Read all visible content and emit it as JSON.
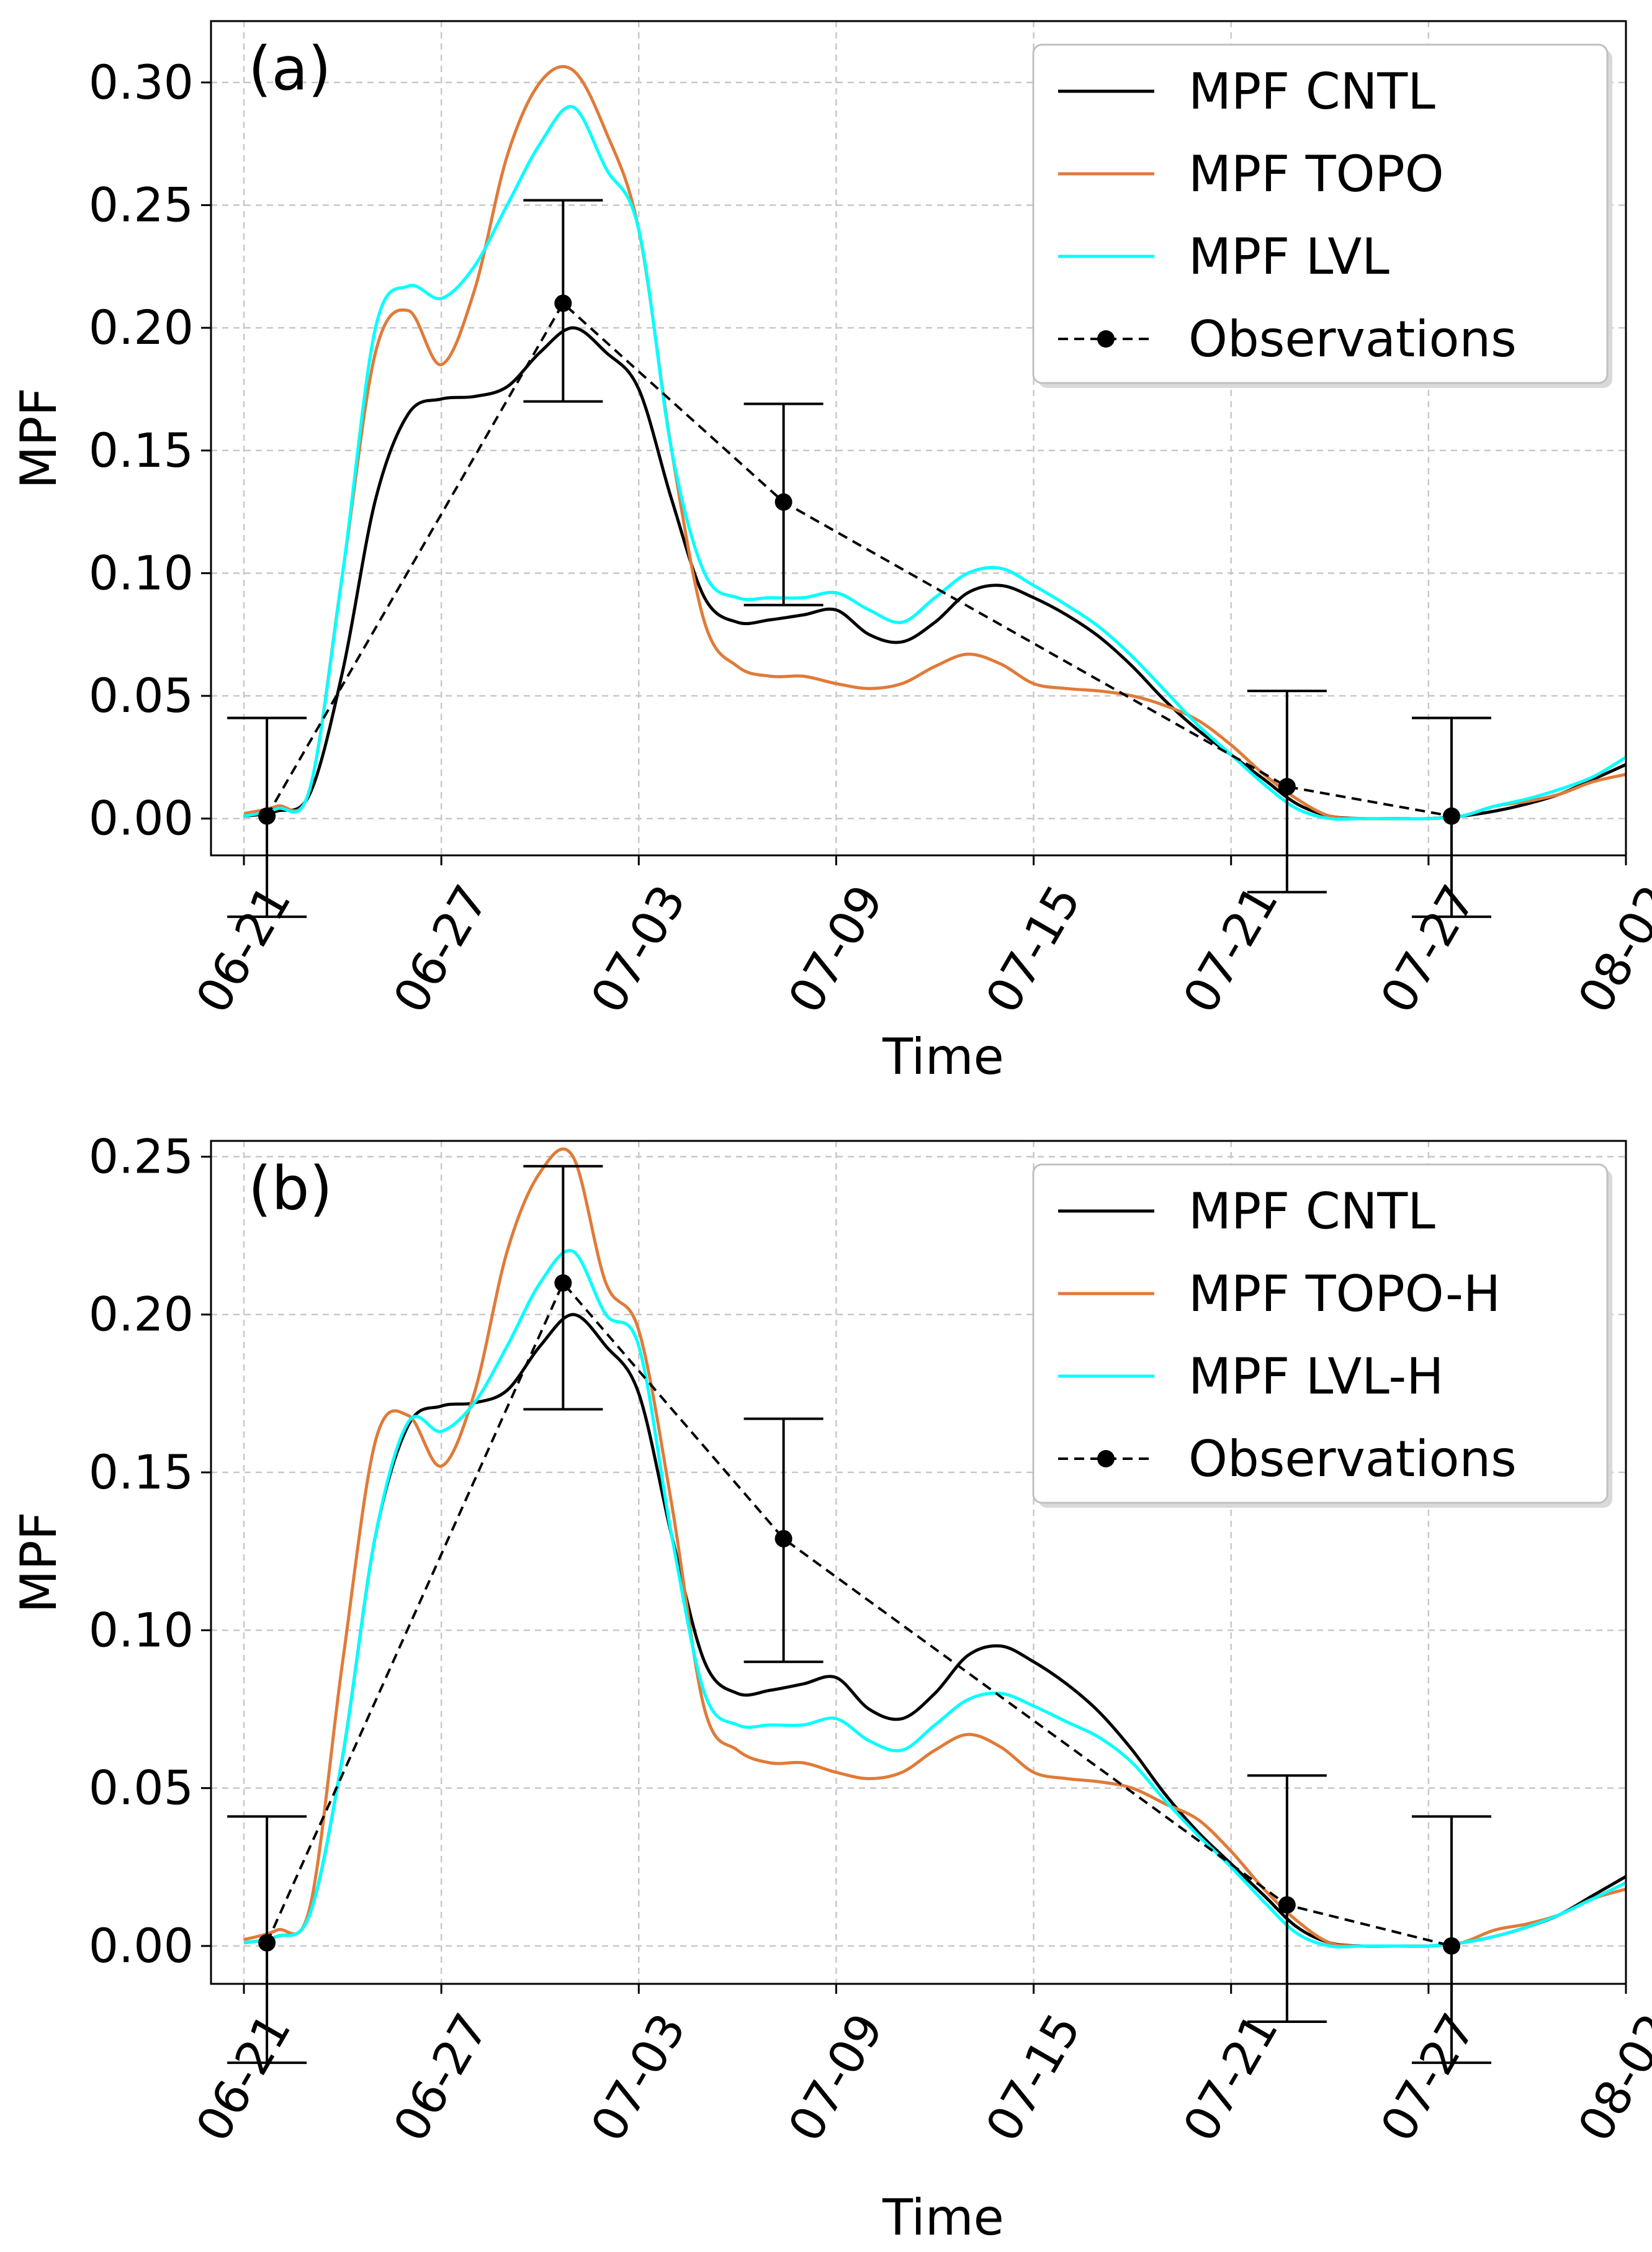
{
  "figure": {
    "background": "#ffffff"
  },
  "chart_data": [
    {
      "panel_label": "(a)",
      "type": "line",
      "xlabel": "Time",
      "ylabel": "MPF",
      "xlim": [
        -1,
        42
      ],
      "ylim": [
        -0.015,
        0.325
      ],
      "x_ticks": [
        0,
        6,
        12,
        18,
        24,
        30,
        36,
        42
      ],
      "x_tick_labels": [
        "06-21",
        "06-27",
        "07-03",
        "07-09",
        "07-15",
        "07-21",
        "07-27",
        "08-02"
      ],
      "y_ticks": [
        0.0,
        0.05,
        0.1,
        0.15,
        0.2,
        0.25,
        0.3
      ],
      "y_tick_labels": [
        "0.00",
        "0.05",
        "0.10",
        "0.15",
        "0.20",
        "0.25",
        "0.30"
      ],
      "grid": true,
      "legend_position": "top-right",
      "series": [
        {
          "name": "MPF CNTL",
          "color": "#000000",
          "style": "solid",
          "x": [
            0,
            1,
            2,
            3,
            4,
            5,
            6,
            7,
            8,
            9,
            10,
            11,
            12,
            13,
            14,
            15,
            16,
            17,
            18,
            19,
            20,
            21,
            22,
            23,
            24,
            25,
            26,
            27,
            28,
            29,
            30,
            31,
            32,
            33,
            34,
            35,
            36,
            37,
            38,
            39,
            40,
            41,
            42
          ],
          "y": [
            0.001,
            0.003,
            0.01,
            0.06,
            0.13,
            0.165,
            0.171,
            0.172,
            0.176,
            0.19,
            0.2,
            0.19,
            0.175,
            0.13,
            0.09,
            0.08,
            0.081,
            0.083,
            0.085,
            0.075,
            0.072,
            0.08,
            0.092,
            0.095,
            0.09,
            0.083,
            0.074,
            0.062,
            0.048,
            0.036,
            0.026,
            0.016,
            0.006,
            0.001,
            0.0,
            0.0,
            0.0,
            0.001,
            0.003,
            0.006,
            0.01,
            0.016,
            0.022
          ]
        },
        {
          "name": "MPF TOPO",
          "color": "#e07b39",
          "style": "solid",
          "x": [
            0,
            1,
            2,
            3,
            4,
            5,
            6,
            7,
            8,
            9,
            10,
            11,
            12,
            13,
            14,
            15,
            16,
            17,
            18,
            19,
            20,
            21,
            22,
            23,
            24,
            25,
            26,
            27,
            28,
            29,
            30,
            31,
            32,
            33,
            34,
            35,
            36,
            37,
            38,
            39,
            40,
            41,
            42
          ],
          "y": [
            0.002,
            0.005,
            0.012,
            0.1,
            0.19,
            0.207,
            0.185,
            0.215,
            0.27,
            0.3,
            0.305,
            0.28,
            0.24,
            0.15,
            0.08,
            0.062,
            0.058,
            0.058,
            0.055,
            0.053,
            0.055,
            0.062,
            0.067,
            0.063,
            0.055,
            0.053,
            0.052,
            0.05,
            0.046,
            0.04,
            0.03,
            0.018,
            0.008,
            0.001,
            0.0,
            0.0,
            0.0,
            0.001,
            0.005,
            0.007,
            0.01,
            0.015,
            0.018
          ]
        },
        {
          "name": "MPF LVL",
          "color": "#00ffff",
          "style": "solid",
          "x": [
            0,
            1,
            2,
            3,
            4,
            5,
            6,
            7,
            8,
            9,
            10,
            11,
            12,
            13,
            14,
            15,
            16,
            17,
            18,
            19,
            20,
            21,
            22,
            23,
            24,
            25,
            26,
            27,
            28,
            29,
            30,
            31,
            32,
            33,
            34,
            35,
            36,
            37,
            38,
            39,
            40,
            41,
            42
          ],
          "y": [
            0.001,
            0.004,
            0.012,
            0.1,
            0.2,
            0.217,
            0.212,
            0.225,
            0.25,
            0.275,
            0.29,
            0.265,
            0.24,
            0.15,
            0.1,
            0.09,
            0.09,
            0.09,
            0.092,
            0.085,
            0.08,
            0.09,
            0.1,
            0.102,
            0.095,
            0.087,
            0.078,
            0.066,
            0.052,
            0.038,
            0.026,
            0.014,
            0.004,
            0.0,
            0.0,
            0.0,
            0.0,
            0.001,
            0.005,
            0.008,
            0.012,
            0.017,
            0.025
          ]
        },
        {
          "name": "Observations",
          "color": "#000000",
          "style": "dashed-marker",
          "x": [
            0.7,
            9.7,
            16.4,
            31.7,
            36.7
          ],
          "y": [
            0.001,
            0.21,
            0.129,
            0.013,
            0.001
          ],
          "err_low": [
            -0.04,
            0.17,
            0.087,
            -0.03,
            -0.04
          ],
          "err_high": [
            0.041,
            0.252,
            0.169,
            0.052,
            0.041
          ]
        }
      ]
    },
    {
      "panel_label": "(b)",
      "type": "line",
      "xlabel": "Time",
      "ylabel": "MPF",
      "xlim": [
        -1,
        42
      ],
      "ylim": [
        -0.012,
        0.255
      ],
      "x_ticks": [
        0,
        6,
        12,
        18,
        24,
        30,
        36,
        42
      ],
      "x_tick_labels": [
        "06-21",
        "06-27",
        "07-03",
        "07-09",
        "07-15",
        "07-21",
        "07-27",
        "08-02"
      ],
      "y_ticks": [
        0.0,
        0.05,
        0.1,
        0.15,
        0.2,
        0.25
      ],
      "y_tick_labels": [
        "0.00",
        "0.05",
        "0.10",
        "0.15",
        "0.20",
        "0.25"
      ],
      "grid": true,
      "legend_position": "top-right",
      "series": [
        {
          "name": "MPF CNTL",
          "color": "#000000",
          "style": "solid",
          "x": [
            0,
            1,
            2,
            3,
            4,
            5,
            6,
            7,
            8,
            9,
            10,
            11,
            12,
            13,
            14,
            15,
            16,
            17,
            18,
            19,
            20,
            21,
            22,
            23,
            24,
            25,
            26,
            27,
            28,
            29,
            30,
            31,
            32,
            33,
            34,
            35,
            36,
            37,
            38,
            39,
            40,
            41,
            42
          ],
          "y": [
            0.001,
            0.003,
            0.01,
            0.06,
            0.13,
            0.165,
            0.171,
            0.172,
            0.176,
            0.19,
            0.2,
            0.19,
            0.175,
            0.13,
            0.09,
            0.08,
            0.081,
            0.083,
            0.085,
            0.075,
            0.072,
            0.08,
            0.092,
            0.095,
            0.09,
            0.083,
            0.074,
            0.062,
            0.048,
            0.036,
            0.026,
            0.016,
            0.006,
            0.001,
            0.0,
            0.0,
            0.0,
            0.001,
            0.003,
            0.006,
            0.01,
            0.016,
            0.022
          ]
        },
        {
          "name": "MPF TOPO-H",
          "color": "#e07b39",
          "style": "solid",
          "x": [
            0,
            1,
            2,
            3,
            4,
            5,
            6,
            7,
            8,
            9,
            10,
            11,
            12,
            13,
            14,
            15,
            16,
            17,
            18,
            19,
            20,
            21,
            22,
            23,
            24,
            25,
            26,
            27,
            28,
            29,
            30,
            31,
            32,
            33,
            34,
            35,
            36,
            37,
            38,
            39,
            40,
            41,
            42
          ],
          "y": [
            0.002,
            0.005,
            0.012,
            0.09,
            0.16,
            0.168,
            0.152,
            0.175,
            0.22,
            0.245,
            0.25,
            0.21,
            0.195,
            0.14,
            0.075,
            0.062,
            0.058,
            0.058,
            0.055,
            0.053,
            0.055,
            0.062,
            0.067,
            0.063,
            0.055,
            0.053,
            0.052,
            0.05,
            0.045,
            0.04,
            0.03,
            0.018,
            0.008,
            0.001,
            0.0,
            0.0,
            0.0,
            0.001,
            0.005,
            0.007,
            0.01,
            0.015,
            0.018
          ]
        },
        {
          "name": "MPF LVL-H",
          "color": "#00ffff",
          "style": "solid",
          "x": [
            0,
            1,
            2,
            3,
            4,
            5,
            6,
            7,
            8,
            9,
            10,
            11,
            12,
            13,
            14,
            15,
            16,
            17,
            18,
            19,
            20,
            21,
            22,
            23,
            24,
            25,
            26,
            27,
            28,
            29,
            30,
            31,
            32,
            33,
            34,
            35,
            36,
            37,
            38,
            39,
            40,
            41,
            42
          ],
          "y": [
            0.001,
            0.003,
            0.01,
            0.06,
            0.13,
            0.166,
            0.163,
            0.172,
            0.19,
            0.21,
            0.22,
            0.2,
            0.19,
            0.13,
            0.08,
            0.07,
            0.07,
            0.07,
            0.072,
            0.065,
            0.062,
            0.07,
            0.078,
            0.08,
            0.076,
            0.071,
            0.066,
            0.058,
            0.046,
            0.035,
            0.025,
            0.014,
            0.004,
            0.0,
            0.0,
            0.0,
            0.0,
            0.001,
            0.003,
            0.006,
            0.01,
            0.015,
            0.02
          ]
        },
        {
          "name": "Observations",
          "color": "#000000",
          "style": "dashed-marker",
          "x": [
            0.7,
            9.7,
            16.4,
            31.7,
            36.7
          ],
          "y": [
            0.001,
            0.21,
            0.129,
            0.013,
            0.0
          ],
          "err_low": [
            -0.037,
            0.17,
            0.09,
            -0.024,
            -0.037
          ],
          "err_high": [
            0.041,
            0.247,
            0.167,
            0.054,
            0.041
          ]
        }
      ]
    }
  ]
}
